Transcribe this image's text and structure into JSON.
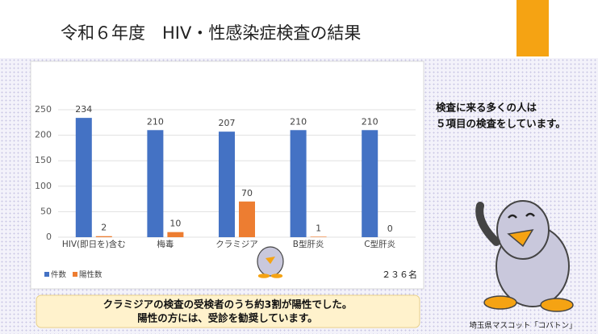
{
  "title": "令和６年度　HIV・性感染症検査の結果",
  "chart_data": {
    "type": "bar",
    "categories": [
      "HIV(即日を)含む",
      "梅毒",
      "クラミジア",
      "B型肝炎",
      "C型肝炎"
    ],
    "series": [
      {
        "name": "件数",
        "color": "#4472c4",
        "values": [
          234,
          210,
          207,
          210,
          210
        ]
      },
      {
        "name": "陽性数",
        "color": "#ed7d31",
        "values": [
          2,
          10,
          70,
          1,
          0
        ]
      }
    ],
    "ylim": [
      0,
      250
    ],
    "yticks": [
      0,
      50,
      100,
      150,
      200,
      250
    ],
    "grid": true,
    "annotation": "２３６名"
  },
  "callout_lines": [
    "検査に来る多くの人は",
    "５項目の検査をしています。"
  ],
  "note_lines": [
    "クラミジアの検査の受検者のうち約3割が陽性でした。",
    "陽性の方には、受診を勧奨しています。"
  ],
  "mascot_caption": "埼玉県マスコット「コバトン」"
}
